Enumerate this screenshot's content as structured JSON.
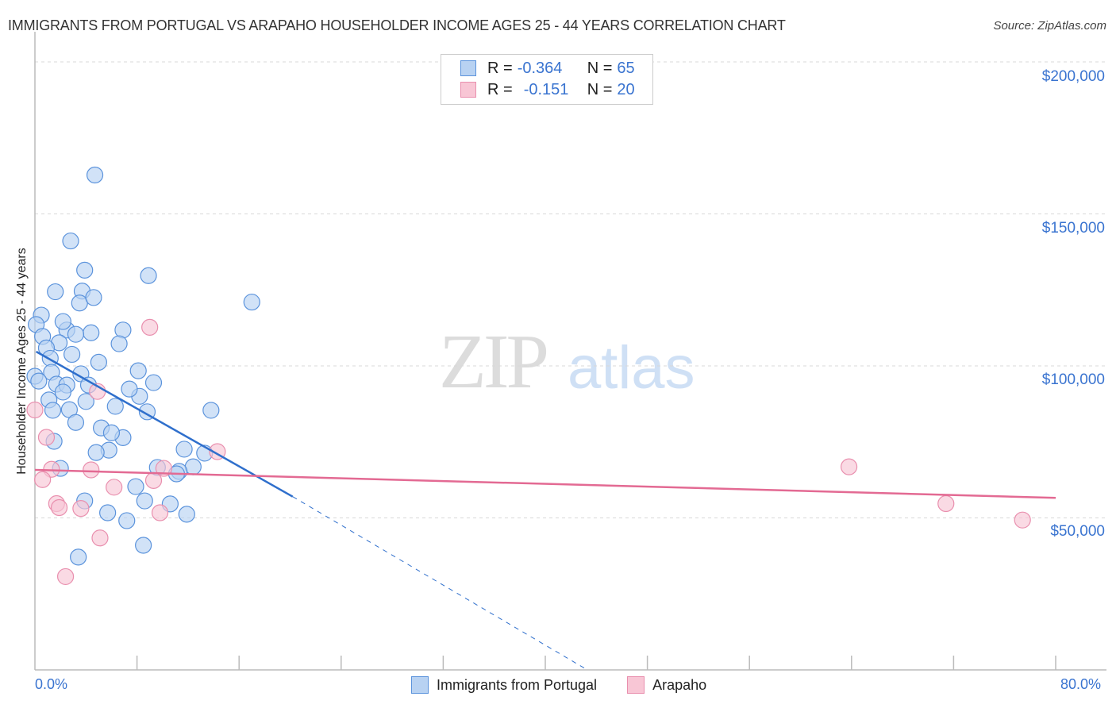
{
  "header": {
    "title": "IMMIGRANTS FROM PORTUGAL VS ARAPAHO HOUSEHOLDER INCOME AGES 25 - 44 YEARS CORRELATION CHART",
    "source": "Source: ZipAtlas.com"
  },
  "watermark": {
    "zip": "ZIP",
    "atlas": "atlas"
  },
  "legend_top": {
    "rows": [
      {
        "r_label": "R = ",
        "r_value": "-0.364",
        "n_label": "N = ",
        "n_value": "65"
      },
      {
        "r_label": "R = ",
        "r_value": "-0.151",
        "n_label": "N = ",
        "n_value": "20"
      }
    ]
  },
  "legend_bottom": {
    "items": [
      {
        "label": "Immigrants from Portugal"
      },
      {
        "label": "Arapaho"
      }
    ]
  },
  "axes": {
    "x_min_label": "0.0%",
    "x_max_label": "80.0%",
    "y_label": "Householder Income Ages 25 - 44 years",
    "y_ticks": [
      "$200,000",
      "$150,000",
      "$100,000",
      "$50,000"
    ]
  },
  "colors": {
    "blue_fill": "#b8d2f2",
    "blue_stroke": "#5b93dc",
    "blue_line": "#2f6fcc",
    "pink_fill": "#f8c6d5",
    "pink_stroke": "#e98fae",
    "pink_line": "#e36a93",
    "tick_text": "#3a74d0"
  },
  "chart_data": {
    "type": "scatter",
    "title": "IMMIGRANTS FROM PORTUGAL VS ARAPAHO HOUSEHOLDER INCOME AGES 25 - 44 YEARS CORRELATION CHART",
    "xlabel": "",
    "ylabel": "Householder Income Ages 25 - 44 years",
    "xlim": [
      0,
      80
    ],
    "ylim": [
      0,
      200000
    ],
    "x_unit": "%",
    "grid": true,
    "legend_position": "top-center",
    "series": [
      {
        "name": "Immigrants from Portugal",
        "R": -0.364,
        "N": 65,
        "points": [
          [
            4.7,
            162800
          ],
          [
            2.8,
            141100
          ],
          [
            3.9,
            131500
          ],
          [
            8.9,
            129700
          ],
          [
            1.6,
            124400
          ],
          [
            3.7,
            124600
          ],
          [
            3.5,
            120700
          ],
          [
            4.6,
            122500
          ],
          [
            0.5,
            116700
          ],
          [
            17.0,
            121000
          ],
          [
            2.5,
            111800
          ],
          [
            6.9,
            111800
          ],
          [
            4.4,
            110900
          ],
          [
            0.1,
            113600
          ],
          [
            0.6,
            109700
          ],
          [
            3.2,
            110400
          ],
          [
            1.9,
            107600
          ],
          [
            6.6,
            107300
          ],
          [
            0.9,
            105900
          ],
          [
            2.9,
            103800
          ],
          [
            1.2,
            102500
          ],
          [
            5.0,
            101200
          ],
          [
            8.1,
            98400
          ],
          [
            1.3,
            97900
          ],
          [
            0.0,
            96600
          ],
          [
            3.6,
            97400
          ],
          [
            1.7,
            94000
          ],
          [
            2.5,
            93700
          ],
          [
            9.3,
            94500
          ],
          [
            8.2,
            90000
          ],
          [
            2.2,
            91400
          ],
          [
            4.2,
            93700
          ],
          [
            7.4,
            92400
          ],
          [
            1.1,
            88800
          ],
          [
            6.3,
            86700
          ],
          [
            8.8,
            84900
          ],
          [
            13.8,
            85400
          ],
          [
            2.7,
            85600
          ],
          [
            3.2,
            81400
          ],
          [
            5.2,
            79600
          ],
          [
            6.9,
            76400
          ],
          [
            1.5,
            75200
          ],
          [
            5.8,
            72300
          ],
          [
            4.8,
            71500
          ],
          [
            11.7,
            72600
          ],
          [
            13.3,
            71300
          ],
          [
            12.4,
            66800
          ],
          [
            9.6,
            66600
          ],
          [
            11.3,
            65300
          ],
          [
            11.1,
            64500
          ],
          [
            2.0,
            66300
          ],
          [
            7.9,
            60300
          ],
          [
            8.6,
            55600
          ],
          [
            10.6,
            54600
          ],
          [
            3.9,
            55600
          ],
          [
            5.7,
            51700
          ],
          [
            7.2,
            49100
          ],
          [
            11.9,
            51200
          ],
          [
            8.5,
            41000
          ],
          [
            3.4,
            37100
          ],
          [
            1.4,
            85400
          ],
          [
            2.2,
            114600
          ],
          [
            4.0,
            88300
          ],
          [
            0.3,
            95000
          ],
          [
            6.0,
            78000
          ]
        ],
        "trend": {
          "x0": 0.1,
          "y0": 104700,
          "x1": 20.2,
          "y1": 57000,
          "dashed_to_x": 43.3,
          "dashed_to_y": 0
        }
      },
      {
        "name": "Arapaho",
        "R": -0.151,
        "N": 20,
        "points": [
          [
            9.0,
            112700
          ],
          [
            0.0,
            85500
          ],
          [
            4.9,
            91600
          ],
          [
            0.9,
            76500
          ],
          [
            14.3,
            71800
          ],
          [
            1.3,
            66000
          ],
          [
            4.4,
            65800
          ],
          [
            10.1,
            66300
          ],
          [
            0.6,
            62600
          ],
          [
            9.3,
            62300
          ],
          [
            6.2,
            60100
          ],
          [
            1.7,
            54700
          ],
          [
            1.9,
            53400
          ],
          [
            3.6,
            53100
          ],
          [
            9.8,
            51700
          ],
          [
            5.1,
            43400
          ],
          [
            2.4,
            30700
          ],
          [
            63.8,
            66800
          ],
          [
            71.4,
            54700
          ],
          [
            77.4,
            49300
          ]
        ],
        "trend": {
          "x0": 0.0,
          "y0": 65800,
          "x1": 80.0,
          "y1": 56600
        }
      }
    ]
  }
}
